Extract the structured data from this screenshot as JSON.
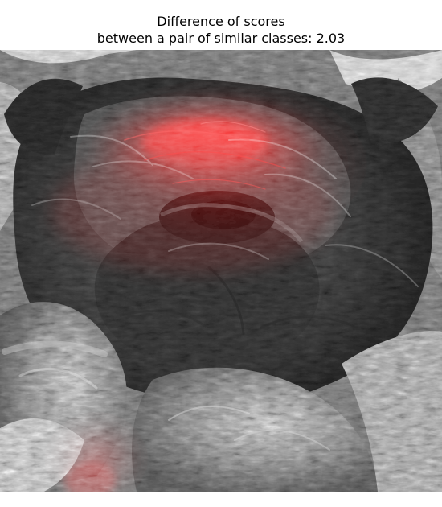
{
  "figure": {
    "title_line_1": "Difference of scores",
    "title_line_2": "between a pair of similar classes: 2.03"
  },
  "image": {
    "subject": "grayscale close-up of a dog's face",
    "overlay": "red saliency heatmap",
    "heatmap_color": "#ff0000"
  }
}
